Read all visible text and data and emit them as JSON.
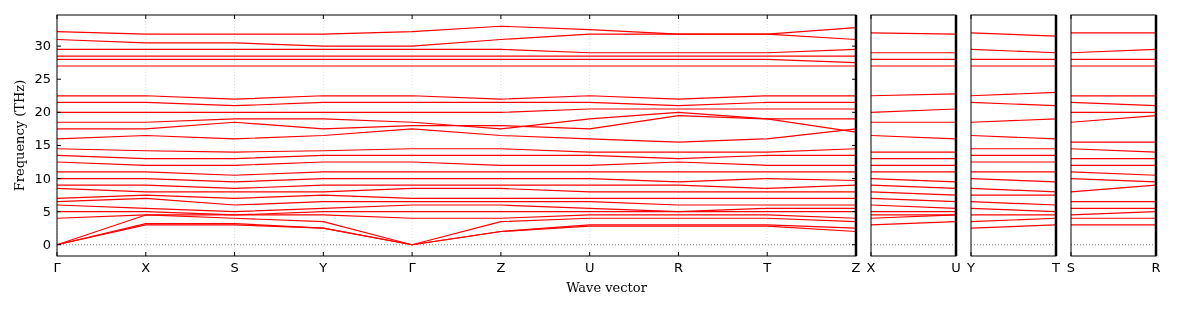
{
  "chart_data": [
    {
      "type": "line",
      "xlabel": "Wave vector",
      "ylabel": "Frequency (THz)",
      "ylim": [
        -1.7,
        34.7
      ],
      "yticks": [
        0,
        5,
        10,
        15,
        20,
        25,
        30
      ],
      "categories": [
        "Γ",
        "X",
        "S",
        "Y",
        "Γ",
        "Z",
        "U",
        "R",
        "T",
        "Z"
      ],
      "grid": "x",
      "ref_lines": [
        {
          "axis": "y",
          "value": 0,
          "line_style": "dotted",
          "color": "#000000"
        }
      ],
      "series": [
        {
          "color": "#ff0000",
          "values": [
            0,
            3,
            3,
            2.5,
            0,
            2,
            2.8,
            2.8,
            2.8,
            2
          ]
        },
        {
          "color": "#ff0000",
          "values": [
            0,
            3.2,
            3.2,
            2.5,
            0,
            2,
            3,
            3,
            3,
            2.5
          ]
        },
        {
          "color": "#ff0000",
          "values": [
            0,
            4.5,
            4,
            3.5,
            0,
            3.5,
            4,
            4,
            4,
            3.5
          ]
        },
        {
          "color": "#ff0000",
          "values": [
            4,
            4.5,
            4.5,
            4.5,
            4,
            4,
            4.5,
            4.5,
            4.5,
            4
          ]
        },
        {
          "color": "#ff0000",
          "values": [
            5,
            5,
            4.5,
            5,
            5,
            5,
            5,
            5,
            5,
            5
          ]
        },
        {
          "color": "#ff0000",
          "values": [
            6,
            5.5,
            5,
            5.5,
            6,
            6,
            5.5,
            5,
            5.5,
            5.5
          ]
        },
        {
          "color": "#ff0000",
          "values": [
            6.5,
            7,
            6,
            6.5,
            6.5,
            6.5,
            6.5,
            6,
            6,
            6
          ]
        },
        {
          "color": "#ff0000",
          "values": [
            7,
            7.5,
            7,
            7.5,
            7,
            7,
            7,
            7,
            7,
            7
          ]
        },
        {
          "color": "#ff0000",
          "values": [
            8.5,
            8,
            8,
            8,
            8.5,
            8.5,
            8,
            8,
            8,
            8
          ]
        },
        {
          "color": "#ff0000",
          "values": [
            9,
            9,
            8.5,
            9,
            9,
            9,
            9,
            9,
            8.5,
            9
          ]
        },
        {
          "color": "#ff0000",
          "values": [
            10,
            10,
            9.5,
            10,
            10,
            10,
            10,
            9.5,
            10,
            9.7
          ]
        },
        {
          "color": "#ff0000",
          "values": [
            11,
            11,
            10.5,
            11,
            11,
            11,
            11,
            11,
            11,
            11
          ]
        },
        {
          "color": "#ff0000",
          "values": [
            12.5,
            12,
            12,
            12.5,
            12.5,
            12,
            12,
            12.5,
            12,
            12
          ]
        },
        {
          "color": "#ff0000",
          "values": [
            13.5,
            13,
            13,
            13.5,
            13.5,
            13.5,
            13.5,
            13,
            13.5,
            13.5
          ]
        },
        {
          "color": "#ff0000",
          "values": [
            14.5,
            14.2,
            14,
            14.2,
            14.5,
            14.5,
            14,
            14,
            14,
            14.5
          ]
        },
        {
          "color": "#ff0000",
          "values": [
            16,
            16.5,
            16,
            16.5,
            17.5,
            16.5,
            16,
            15.5,
            16,
            17.5
          ]
        },
        {
          "color": "#ff0000",
          "values": [
            17.5,
            17.5,
            18.5,
            17.5,
            18,
            18,
            17.5,
            19.5,
            19,
            17
          ]
        },
        {
          "color": "#ff0000",
          "values": [
            18.5,
            18.5,
            19,
            19,
            18.5,
            17.5,
            19,
            20,
            19,
            19
          ]
        },
        {
          "color": "#ff0000",
          "values": [
            20,
            20,
            20,
            20,
            20,
            20,
            20.5,
            20.5,
            20.5,
            20.5
          ]
        },
        {
          "color": "#ff0000",
          "values": [
            21.5,
            21.5,
            21,
            21.5,
            21.5,
            21.5,
            21.5,
            21,
            21.5,
            21.5
          ]
        },
        {
          "color": "#ff0000",
          "values": [
            22.5,
            22.5,
            22,
            22.5,
            22.5,
            22,
            22.5,
            22,
            22.5,
            22.5
          ]
        },
        {
          "color": "#ff0000",
          "values": [
            27,
            27,
            27,
            27,
            27,
            27,
            27,
            27,
            27,
            27
          ]
        },
        {
          "color": "#ff0000",
          "values": [
            28,
            28,
            28,
            28,
            28,
            28,
            28,
            28,
            28,
            27.5
          ]
        },
        {
          "color": "#ff0000",
          "values": [
            28.5,
            28.5,
            28.5,
            28.5,
            28.5,
            28.5,
            28.5,
            28.5,
            28.5,
            28.5
          ]
        },
        {
          "color": "#ff0000",
          "values": [
            29.5,
            29.5,
            29.5,
            29.5,
            29.5,
            29.5,
            29,
            29,
            29,
            29.5
          ]
        },
        {
          "color": "#ff0000",
          "values": [
            31,
            30.5,
            30.5,
            30,
            30,
            31,
            31.8,
            31.8,
            31.8,
            31
          ]
        },
        {
          "color": "#ff0000",
          "values": [
            32.2,
            31.8,
            31.8,
            31.8,
            32.2,
            33,
            32.5,
            31.8,
            31.8,
            32.8
          ]
        }
      ]
    },
    {
      "type": "line",
      "ylim": [
        -1.7,
        34.7
      ],
      "tick_labels": "x",
      "categories": [
        "X",
        "U"
      ],
      "ref_lines": [
        {
          "axis": "y",
          "value": 0,
          "line_style": "dotted",
          "color": "#000000"
        }
      ],
      "series": [
        {
          "color": "#ff0000",
          "values": [
            3,
            3.5
          ]
        },
        {
          "color": "#ff0000",
          "values": [
            4,
            4.5
          ]
        },
        {
          "color": "#ff0000",
          "values": [
            4.5,
            4.5
          ]
        },
        {
          "color": "#ff0000",
          "values": [
            5,
            5
          ]
        },
        {
          "color": "#ff0000",
          "values": [
            6,
            5.5
          ]
        },
        {
          "color": "#ff0000",
          "values": [
            7,
            6.5
          ]
        },
        {
          "color": "#ff0000",
          "values": [
            8,
            7.5
          ]
        },
        {
          "color": "#ff0000",
          "values": [
            9,
            8.5
          ]
        },
        {
          "color": "#ff0000",
          "values": [
            10,
            9.5
          ]
        },
        {
          "color": "#ff0000",
          "values": [
            11,
            11
          ]
        },
        {
          "color": "#ff0000",
          "values": [
            12,
            12
          ]
        },
        {
          "color": "#ff0000",
          "values": [
            13,
            13
          ]
        },
        {
          "color": "#ff0000",
          "values": [
            14,
            14
          ]
        },
        {
          "color": "#ff0000",
          "values": [
            16.5,
            16
          ]
        },
        {
          "color": "#ff0000",
          "values": [
            18.5,
            18.5
          ]
        },
        {
          "color": "#ff0000",
          "values": [
            20,
            20.5
          ]
        },
        {
          "color": "#ff0000",
          "values": [
            22.5,
            22.8
          ]
        },
        {
          "color": "#ff0000",
          "values": [
            27,
            27
          ]
        },
        {
          "color": "#ff0000",
          "values": [
            28,
            28
          ]
        },
        {
          "color": "#ff0000",
          "values": [
            29,
            29
          ]
        },
        {
          "color": "#ff0000",
          "values": [
            32,
            31.8
          ]
        }
      ]
    },
    {
      "type": "line",
      "ylim": [
        -1.7,
        34.7
      ],
      "tick_labels": "x",
      "categories": [
        "Y",
        "T"
      ],
      "ref_lines": [
        {
          "axis": "y",
          "value": 0,
          "line_style": "dotted",
          "color": "#000000"
        }
      ],
      "series": [
        {
          "color": "#ff0000",
          "values": [
            2.5,
            3
          ]
        },
        {
          "color": "#ff0000",
          "values": [
            3.5,
            4
          ]
        },
        {
          "color": "#ff0000",
          "values": [
            4.5,
            4.5
          ]
        },
        {
          "color": "#ff0000",
          "values": [
            5.5,
            5
          ]
        },
        {
          "color": "#ff0000",
          "values": [
            6.5,
            6
          ]
        },
        {
          "color": "#ff0000",
          "values": [
            7.5,
            7.5
          ]
        },
        {
          "color": "#ff0000",
          "values": [
            8.5,
            8
          ]
        },
        {
          "color": "#ff0000",
          "values": [
            10,
            9.5
          ]
        },
        {
          "color": "#ff0000",
          "values": [
            11,
            11
          ]
        },
        {
          "color": "#ff0000",
          "values": [
            12.5,
            12.5
          ]
        },
        {
          "color": "#ff0000",
          "values": [
            13.5,
            13.5
          ]
        },
        {
          "color": "#ff0000",
          "values": [
            14.5,
            14.5
          ]
        },
        {
          "color": "#ff0000",
          "values": [
            16.5,
            16
          ]
        },
        {
          "color": "#ff0000",
          "values": [
            18.5,
            19
          ]
        },
        {
          "color": "#ff0000",
          "values": [
            21.5,
            21
          ]
        },
        {
          "color": "#ff0000",
          "values": [
            22.5,
            23
          ]
        },
        {
          "color": "#ff0000",
          "values": [
            27,
            27
          ]
        },
        {
          "color": "#ff0000",
          "values": [
            28,
            28
          ]
        },
        {
          "color": "#ff0000",
          "values": [
            29.5,
            29
          ]
        },
        {
          "color": "#ff0000",
          "values": [
            32,
            31.5
          ]
        }
      ]
    },
    {
      "type": "line",
      "ylim": [
        -1.7,
        34.7
      ],
      "tick_labels": "x",
      "categories": [
        "S",
        "R"
      ],
      "ref_lines": [
        {
          "axis": "y",
          "value": 0,
          "line_style": "dotted",
          "color": "#000000"
        }
      ],
      "series": [
        {
          "color": "#ff0000",
          "values": [
            3,
            3
          ]
        },
        {
          "color": "#ff0000",
          "values": [
            4,
            4
          ]
        },
        {
          "color": "#ff0000",
          "values": [
            4.5,
            5
          ]
        },
        {
          "color": "#ff0000",
          "values": [
            5.5,
            5.5
          ]
        },
        {
          "color": "#ff0000",
          "values": [
            6.5,
            6.5
          ]
        },
        {
          "color": "#ff0000",
          "values": [
            8,
            9
          ]
        },
        {
          "color": "#ff0000",
          "values": [
            10,
            9.5
          ]
        },
        {
          "color": "#ff0000",
          "values": [
            11,
            10.5
          ]
        },
        {
          "color": "#ff0000",
          "values": [
            12,
            12
          ]
        },
        {
          "color": "#ff0000",
          "values": [
            13,
            13
          ]
        },
        {
          "color": "#ff0000",
          "values": [
            14.5,
            14
          ]
        },
        {
          "color": "#ff0000",
          "values": [
            15.5,
            15.5
          ]
        },
        {
          "color": "#ff0000",
          "values": [
            18.5,
            19.5
          ]
        },
        {
          "color": "#ff0000",
          "values": [
            20,
            20
          ]
        },
        {
          "color": "#ff0000",
          "values": [
            21.5,
            21
          ]
        },
        {
          "color": "#ff0000",
          "values": [
            22.5,
            22.5
          ]
        },
        {
          "color": "#ff0000",
          "values": [
            27,
            27
          ]
        },
        {
          "color": "#ff0000",
          "values": [
            28,
            28
          ]
        },
        {
          "color": "#ff0000",
          "values": [
            29,
            29.5
          ]
        },
        {
          "color": "#ff0000",
          "values": [
            32,
            32
          ]
        }
      ]
    }
  ]
}
